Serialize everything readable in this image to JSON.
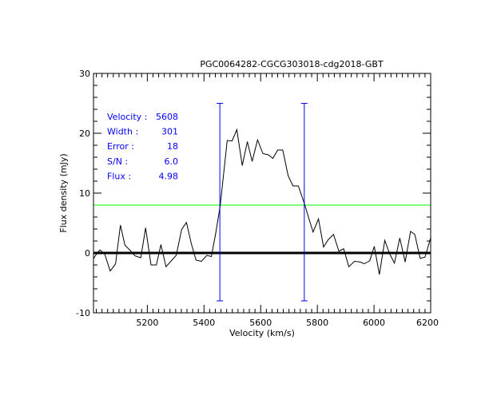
{
  "chart_data": {
    "type": "line",
    "title": "PGC0064282-CGCG303018-cdg2018-GBT",
    "xlabel": "Velocity (km/s)",
    "ylabel": "Flux density (mJy)",
    "xlim": [
      5010,
      6200
    ],
    "ylim": [
      -10,
      30
    ],
    "xticks": [
      5200,
      5400,
      5600,
      5800,
      6000,
      6200
    ],
    "yticks": [
      -10,
      0,
      10,
      20,
      30
    ],
    "x_minor_step": 20,
    "y_minor_step": 2,
    "grid": false,
    "series": [
      {
        "name": "spectrum",
        "color": "#000000",
        "x": [
          5010,
          5017,
          5033,
          5049,
          5069,
          5088,
          5105,
          5121,
          5140,
          5157,
          5177,
          5194,
          5213,
          5232,
          5248,
          5266,
          5302,
          5321,
          5338,
          5355,
          5372,
          5391,
          5410,
          5426,
          5441,
          5457,
          5482,
          5499,
          5516,
          5535,
          5553,
          5570,
          5589,
          5608,
          5627,
          5643,
          5660,
          5678,
          5697,
          5714,
          5733,
          5754,
          5768,
          5785,
          5804,
          5822,
          5838,
          5857,
          5876,
          5893,
          5911,
          5931,
          5950,
          5966,
          5985,
          6001,
          6019,
          6038,
          6055,
          6072,
          6091,
          6110,
          6129,
          6144,
          6163,
          6180,
          6201
        ],
        "y": [
          -1.0,
          -0.4,
          0.5,
          -0.1,
          -3.0,
          -1.8,
          4.65,
          1.3,
          0.4,
          -0.5,
          -0.8,
          4.2,
          -2.0,
          -2.0,
          1.4,
          -2.3,
          -0.4,
          3.9,
          5.1,
          1.6,
          -1.2,
          -1.4,
          -0.4,
          -0.6,
          3.2,
          7.8,
          18.8,
          18.7,
          20.6,
          14.6,
          18.6,
          15.3,
          18.9,
          16.6,
          16.4,
          15.8,
          17.2,
          17.2,
          12.9,
          11.2,
          11.2,
          8.3,
          6.1,
          3.5,
          5.7,
          1.0,
          2.2,
          3.1,
          0.3,
          0.7,
          -2.3,
          -1.4,
          -1.5,
          -1.8,
          -1.3,
          1.1,
          -3.6,
          2.1,
          -0.1,
          -1.7,
          2.5,
          -1.5,
          3.6,
          3.1,
          -0.9,
          -0.7,
          2.7
        ]
      }
    ],
    "zero_line": {
      "y": 0,
      "color": "#000000"
    },
    "threshold_line": {
      "y": 8.0,
      "color": "#00ff00"
    },
    "width_markers": {
      "x": [
        5456,
        5754
      ],
      "y_range": [
        -8,
        25
      ],
      "color": "#0000ff"
    },
    "annotations": {
      "color": "#0000ff",
      "rows": [
        {
          "label": "Velocity :",
          "value": "5608"
        },
        {
          "label": "Width :",
          "value": "301"
        },
        {
          "label": "Error :",
          "value": "18"
        },
        {
          "label": "S/N :",
          "value": "6.0"
        },
        {
          "label": "Flux :",
          "value": "4.98"
        }
      ]
    }
  }
}
